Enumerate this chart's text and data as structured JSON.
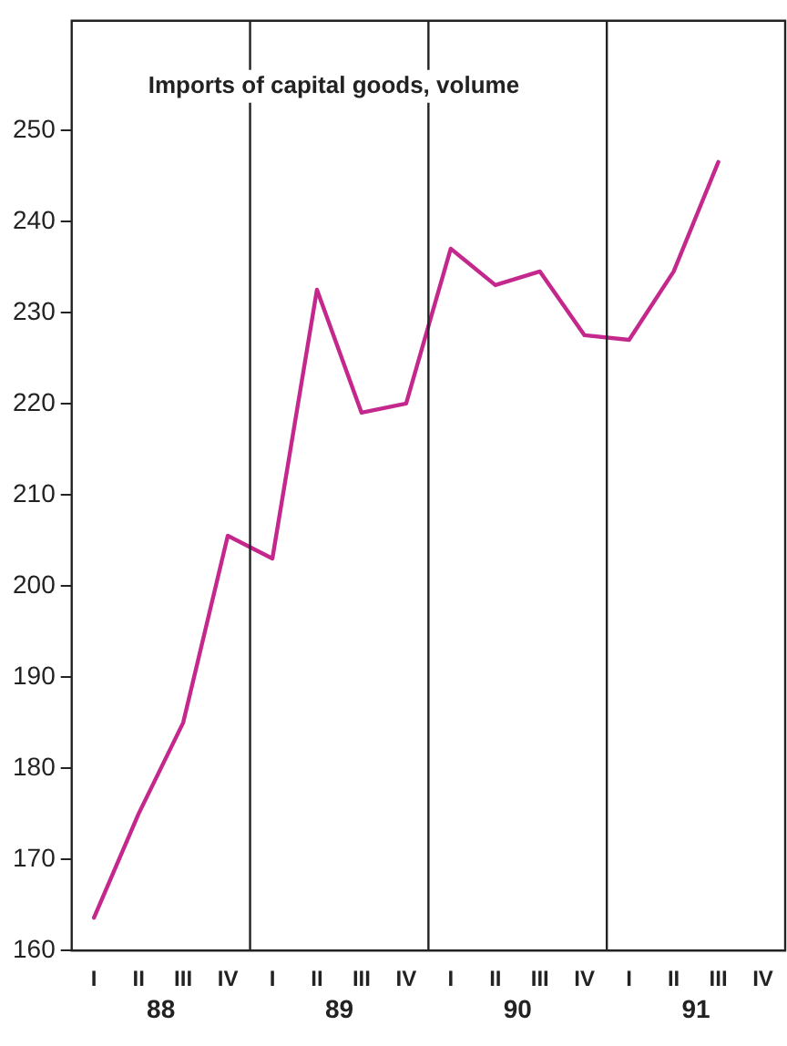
{
  "chart_data": {
    "type": "line",
    "title": "Imports of capital goods, volume",
    "categories": [
      "I",
      "II",
      "III",
      "IV",
      "I",
      "II",
      "III",
      "IV",
      "I",
      "II",
      "III",
      "IV",
      "I",
      "II",
      "III",
      "IV"
    ],
    "series": [
      {
        "color": "#c4288c",
        "values": [
          163.6,
          175,
          185,
          205.5,
          203,
          232.5,
          219,
          220,
          237,
          233,
          234.5,
          227.5,
          227,
          234.5,
          246.5,
          null
        ]
      }
    ],
    "annotations": [
      "88",
      "89",
      "90",
      "91"
    ],
    "ylim": [
      160,
      262
    ],
    "yticks": [
      160,
      170,
      180,
      190,
      200,
      210,
      220,
      230,
      240,
      250
    ],
    "grid": false,
    "legend": false,
    "marker": "none",
    "line_style": "solid"
  }
}
